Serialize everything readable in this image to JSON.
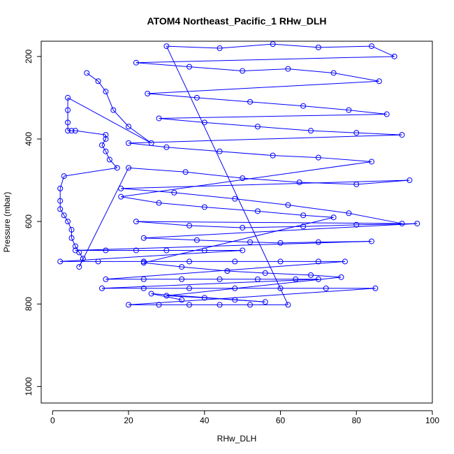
{
  "chart_data": {
    "type": "scatter",
    "title": "ATOM4 Northeast_Pacific_1 RHw_DLH",
    "xlabel": "RHw_DLH",
    "ylabel": "Pressure (mbar)",
    "xlim": [
      -3,
      100
    ],
    "ylim": [
      1040,
      163
    ],
    "y_reversed": true,
    "x_ticks": [
      0,
      20,
      40,
      60,
      80,
      100
    ],
    "y_ticks": [
      200,
      400,
      600,
      800,
      1000
    ],
    "x_tick_labels": [
      "0",
      "20",
      "40",
      "60",
      "80",
      "100"
    ],
    "y_tick_labels": [
      "200",
      "400",
      "600",
      "800",
      "1000"
    ],
    "grid": false,
    "legend": "none",
    "series": [
      {
        "color": "#0000ff",
        "marker": "open-circle",
        "line": true,
        "points": [
          [
            9,
            240
          ],
          [
            12,
            260
          ],
          [
            14,
            285
          ],
          [
            16,
            330
          ],
          [
            20,
            370
          ],
          [
            26,
            410
          ],
          [
            4,
            300
          ],
          [
            4,
            330
          ],
          [
            4,
            360
          ],
          [
            4,
            380
          ],
          [
            5,
            380
          ],
          [
            6,
            380
          ],
          [
            14,
            390
          ],
          [
            14,
            400
          ],
          [
            13,
            415
          ],
          [
            14,
            430
          ],
          [
            15,
            450
          ],
          [
            17,
            470
          ],
          [
            3,
            490
          ],
          [
            2,
            520
          ],
          [
            2,
            550
          ],
          [
            2,
            570
          ],
          [
            3,
            585
          ],
          [
            4,
            600
          ],
          [
            5,
            620
          ],
          [
            5,
            640
          ],
          [
            6,
            660
          ],
          [
            7,
            675
          ],
          [
            8,
            690
          ],
          [
            7,
            710
          ],
          [
            20,
            470
          ],
          [
            35,
            480
          ],
          [
            50,
            495
          ],
          [
            65,
            505
          ],
          [
            80,
            510
          ],
          [
            94,
            500
          ],
          [
            18,
            520
          ],
          [
            32,
            530
          ],
          [
            48,
            545
          ],
          [
            62,
            560
          ],
          [
            78,
            580
          ],
          [
            92,
            605
          ],
          [
            22,
            600
          ],
          [
            36,
            610
          ],
          [
            50,
            615
          ],
          [
            66,
            612
          ],
          [
            80,
            608
          ],
          [
            96,
            605
          ],
          [
            24,
            640
          ],
          [
            38,
            645
          ],
          [
            52,
            650
          ],
          [
            60,
            652
          ],
          [
            70,
            650
          ],
          [
            84,
            648
          ],
          [
            6,
            670
          ],
          [
            14,
            670
          ],
          [
            22,
            670
          ],
          [
            30,
            670
          ],
          [
            40,
            670
          ],
          [
            50,
            670
          ],
          [
            2,
            697
          ],
          [
            12,
            697
          ],
          [
            24,
            697
          ],
          [
            36,
            697
          ],
          [
            48,
            697
          ],
          [
            60,
            697
          ],
          [
            70,
            697
          ],
          [
            77,
            697
          ],
          [
            14,
            740
          ],
          [
            24,
            740
          ],
          [
            34,
            740
          ],
          [
            44,
            740
          ],
          [
            54,
            740
          ],
          [
            64,
            740
          ],
          [
            70,
            740
          ],
          [
            13,
            762
          ],
          [
            24,
            762
          ],
          [
            36,
            762
          ],
          [
            48,
            762
          ],
          [
            60,
            762
          ],
          [
            72,
            762
          ],
          [
            85,
            762
          ],
          [
            20,
            802
          ],
          [
            28,
            802
          ],
          [
            36,
            802
          ],
          [
            44,
            802
          ],
          [
            52,
            802
          ],
          [
            62,
            802
          ],
          [
            30,
            175
          ],
          [
            44,
            180
          ],
          [
            58,
            170
          ],
          [
            70,
            178
          ],
          [
            84,
            175
          ],
          [
            90,
            200
          ],
          [
            22,
            215
          ],
          [
            36,
            225
          ],
          [
            50,
            235
          ],
          [
            62,
            230
          ],
          [
            74,
            240
          ],
          [
            86,
            260
          ],
          [
            25,
            290
          ],
          [
            38,
            300
          ],
          [
            52,
            310
          ],
          [
            66,
            320
          ],
          [
            78,
            330
          ],
          [
            88,
            340
          ],
          [
            28,
            350
          ],
          [
            40,
            360
          ],
          [
            54,
            370
          ],
          [
            68,
            380
          ],
          [
            80,
            385
          ],
          [
            92,
            390
          ],
          [
            20,
            410
          ],
          [
            30,
            420
          ],
          [
            44,
            430
          ],
          [
            58,
            440
          ],
          [
            70,
            445
          ],
          [
            84,
            455
          ],
          [
            18,
            540
          ],
          [
            28,
            555
          ],
          [
            40,
            565
          ],
          [
            54,
            575
          ],
          [
            66,
            585
          ],
          [
            74,
            590
          ],
          [
            24,
            700
          ],
          [
            34,
            710
          ],
          [
            46,
            720
          ],
          [
            56,
            725
          ],
          [
            68,
            730
          ],
          [
            76,
            735
          ],
          [
            30,
            780
          ],
          [
            40,
            785
          ],
          [
            48,
            790
          ],
          [
            56,
            795
          ],
          [
            26,
            775
          ],
          [
            34,
            790
          ]
        ]
      }
    ]
  }
}
